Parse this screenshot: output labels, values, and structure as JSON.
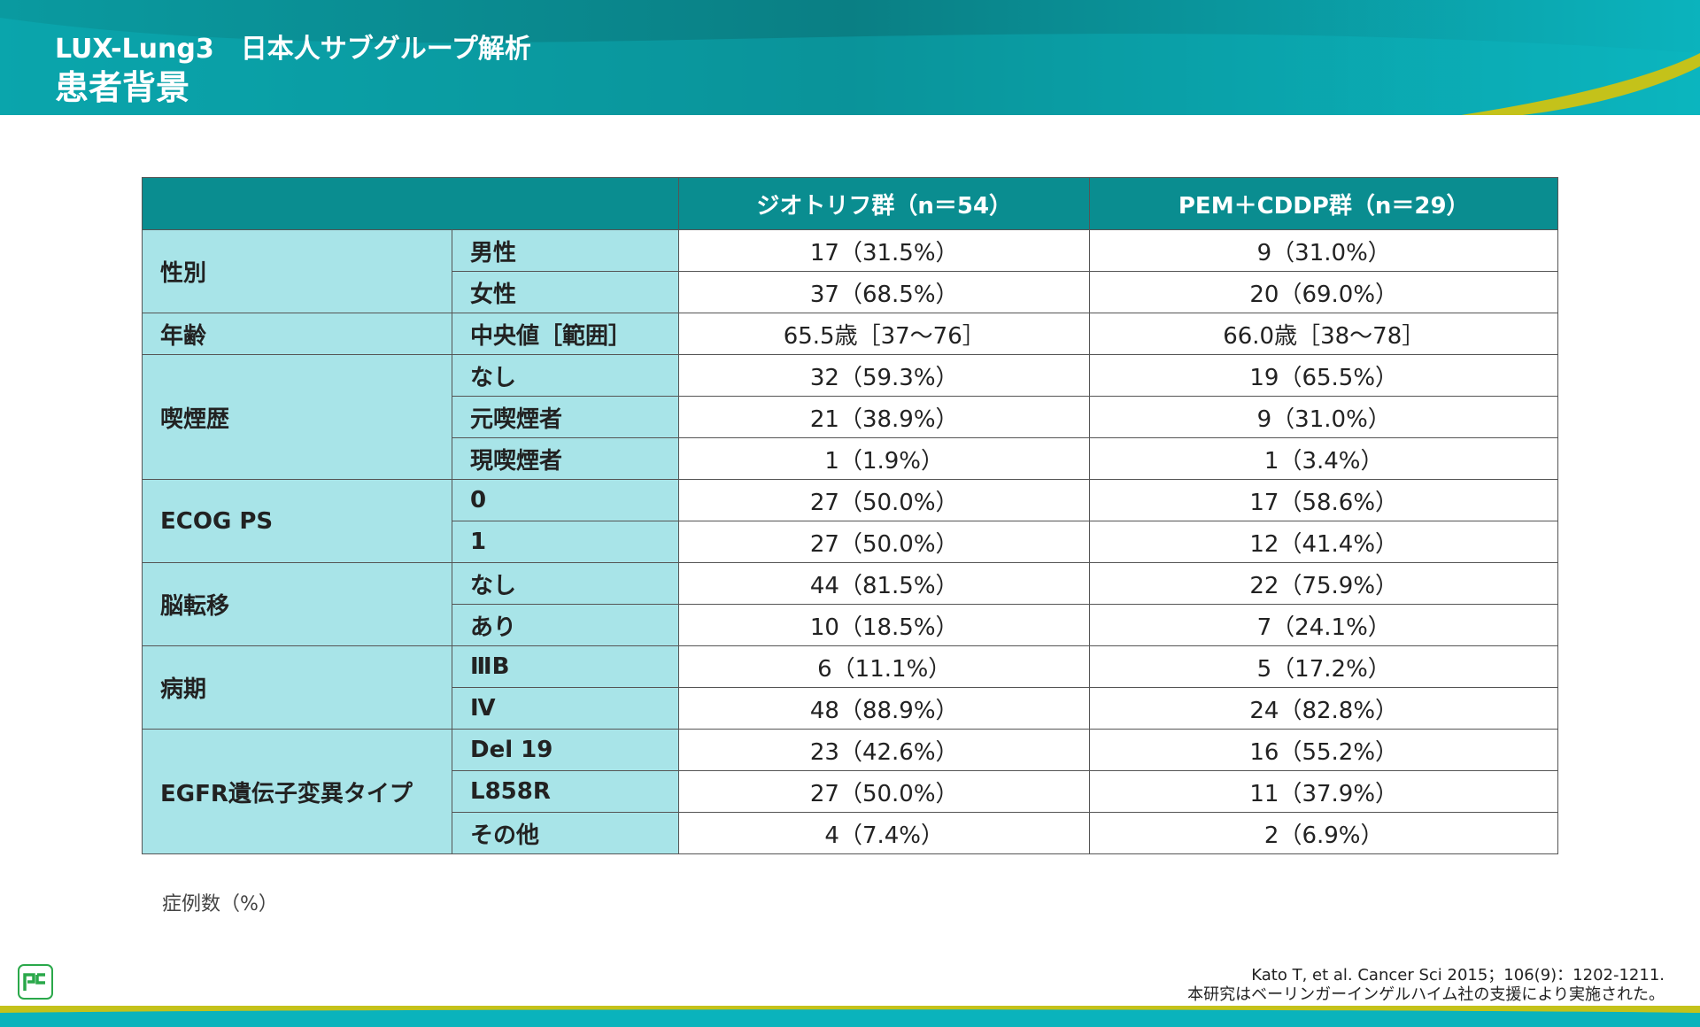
{
  "header": {
    "line1": "LUX-Lung3　日本人サブグループ解析",
    "line2": "患者背景"
  },
  "table": {
    "columns": [
      "ジオトリフ群（n＝54）",
      "PEM＋CDDP群（n＝29）"
    ],
    "groups": [
      {
        "label": "性別",
        "rows": [
          {
            "label": "男性",
            "values": [
              "17（31.5%）",
              "9（31.0%）"
            ]
          },
          {
            "label": "女性",
            "values": [
              "37（68.5%）",
              "20（69.0%）"
            ]
          }
        ]
      },
      {
        "label": "年齢",
        "rows": [
          {
            "label": "中央値［範囲］",
            "values": [
              "65.5歳［37〜76］",
              "66.0歳［38〜78］"
            ]
          }
        ]
      },
      {
        "label": "喫煙歴",
        "rows": [
          {
            "label": "なし",
            "values": [
              "32（59.3%）",
              "19（65.5%）"
            ]
          },
          {
            "label": "元喫煙者",
            "values": [
              "21（38.9%）",
              "9（31.0%）"
            ]
          },
          {
            "label": "現喫煙者",
            "values": [
              "1（1.9%）",
              "1（3.4%）"
            ]
          }
        ]
      },
      {
        "label": "ECOG PS",
        "rows": [
          {
            "label": "0",
            "values": [
              "27（50.0%）",
              "17（58.6%）"
            ]
          },
          {
            "label": "1",
            "values": [
              "27（50.0%）",
              "12（41.4%）"
            ]
          }
        ]
      },
      {
        "label": "脳転移",
        "rows": [
          {
            "label": "なし",
            "values": [
              "44（81.5%）",
              "22（75.9%）"
            ]
          },
          {
            "label": "あり",
            "values": [
              "10（18.5%）",
              "7（24.1%）"
            ]
          }
        ]
      },
      {
        "label": "病期",
        "rows": [
          {
            "label": "ⅢB",
            "values": [
              "6（11.1%）",
              "5（17.2%）"
            ]
          },
          {
            "label": "Ⅳ",
            "values": [
              "48（88.9%）",
              "24（82.8%）"
            ]
          }
        ]
      },
      {
        "label": "EGFR遺伝子変異タイプ",
        "rows": [
          {
            "label": "Del 19",
            "values": [
              "23（42.6%）",
              "16（55.2%）"
            ]
          },
          {
            "label": "L858R",
            "values": [
              "27（50.0%）",
              "11（37.9%）"
            ]
          },
          {
            "label": "その他",
            "values": [
              "4（7.4%）",
              "2（6.9%）"
            ]
          }
        ]
      }
    ]
  },
  "note": "症例数（%）",
  "references": [
    "Kato T, et al. Cancer Sci 2015；106(9)：1202-1211.",
    "本研究はベーリンガーインゲルハイム社の支援により実施された。"
  ]
}
